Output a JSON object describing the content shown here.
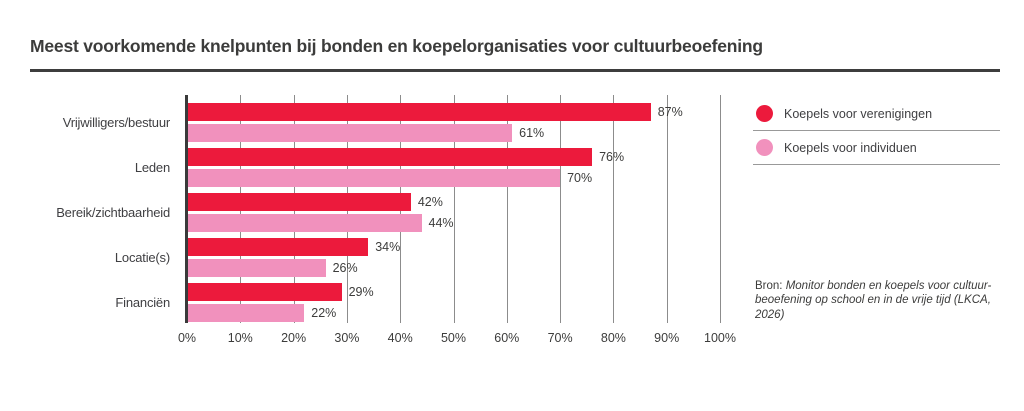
{
  "title": "Meest voorkomende knelpunten bij bonden en koepelorganisaties voor cultuurbeoefening",
  "colors": {
    "series_red": "#EC1A3C",
    "series_pink": "#F191BD",
    "text_dark": "#3C3C3B",
    "gridline": "#8C8C8C",
    "axis": "#3A3A3A",
    "legend_divider": "#999999"
  },
  "chart_data": {
    "type": "bar",
    "orientation": "horizontal",
    "title": "Meest voorkomende knelpunten bij bonden en koepelorganisaties voor cultuurbeoefening",
    "categories": [
      "Vrijwilligers/bestuur",
      "Leden",
      "Bereik/zichtbaarheid",
      "Locatie(s)",
      "Financiën"
    ],
    "series": [
      {
        "name": "Koepels voor verenigingen",
        "color": "#EC1A3C",
        "values": [
          87,
          76,
          42,
          34,
          29
        ]
      },
      {
        "name": "Koepels voor individuen",
        "color": "#F191BD",
        "values": [
          61,
          70,
          44,
          26,
          22
        ]
      }
    ],
    "value_labels": [
      [
        "87%",
        "76%",
        "42%",
        "34%",
        "29%"
      ],
      [
        "61%",
        "70%",
        "44%",
        "26%",
        "22%"
      ]
    ],
    "xlim": [
      0,
      100
    ],
    "x_tick_labels": [
      "0%",
      "10%",
      "20%",
      "30%",
      "40%",
      "50%",
      "60%",
      "70%",
      "80%",
      "90%",
      "100%"
    ],
    "grid": "vertical-10pct",
    "legend_position": "right"
  },
  "legend": {
    "items": [
      {
        "label": "Koepels voor verenigingen",
        "color": "#EC1A3C"
      },
      {
        "label": "Koepels voor individuen",
        "color": "#F191BD"
      }
    ]
  },
  "source": {
    "prefix": "Bron:",
    "lines": [
      "Monitor bonden en koepels voor cultuur-",
      "beoefening op school en in de vrije tijd (LKCA,",
      "2026)"
    ]
  }
}
